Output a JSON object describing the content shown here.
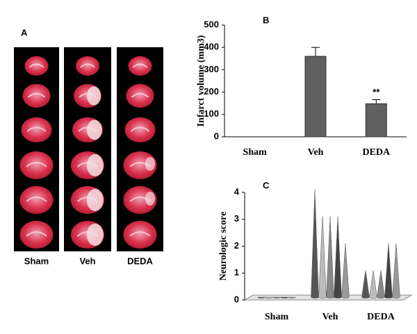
{
  "panel_a": {
    "label": "A",
    "groups": [
      "Sham",
      "Veh",
      "DEDA"
    ]
  },
  "chart_data": [
    {
      "type": "bar",
      "panel_label": "B",
      "y_label": "Infarct volume (mm3)",
      "categories": [
        "Sham",
        "Veh",
        "DEDA"
      ],
      "values": [
        0,
        360,
        148
      ],
      "errors": [
        0,
        40,
        18
      ],
      "annotation": "**",
      "color": "#606060",
      "ylim": [
        0,
        500
      ],
      "yticks": [
        0,
        100,
        200,
        300,
        400,
        500
      ]
    },
    {
      "type": "cone",
      "panel_label": "C",
      "y_label": "Neurologic score",
      "categories": [
        "Sham",
        "Veh",
        "DEDA"
      ],
      "series": [
        {
          "color": "#555555",
          "values": [
            0,
            4,
            1
          ]
        },
        {
          "color": "#bbbbbb",
          "values": [
            0,
            3,
            1
          ]
        },
        {
          "color": "#888888",
          "values": [
            0,
            3,
            1
          ]
        },
        {
          "color": "#444444",
          "values": [
            0,
            3,
            2
          ]
        },
        {
          "color": "#999999",
          "values": [
            0,
            2,
            2
          ]
        }
      ],
      "ylim": [
        0,
        4
      ],
      "yticks": [
        0,
        1,
        2,
        3,
        4
      ]
    }
  ]
}
